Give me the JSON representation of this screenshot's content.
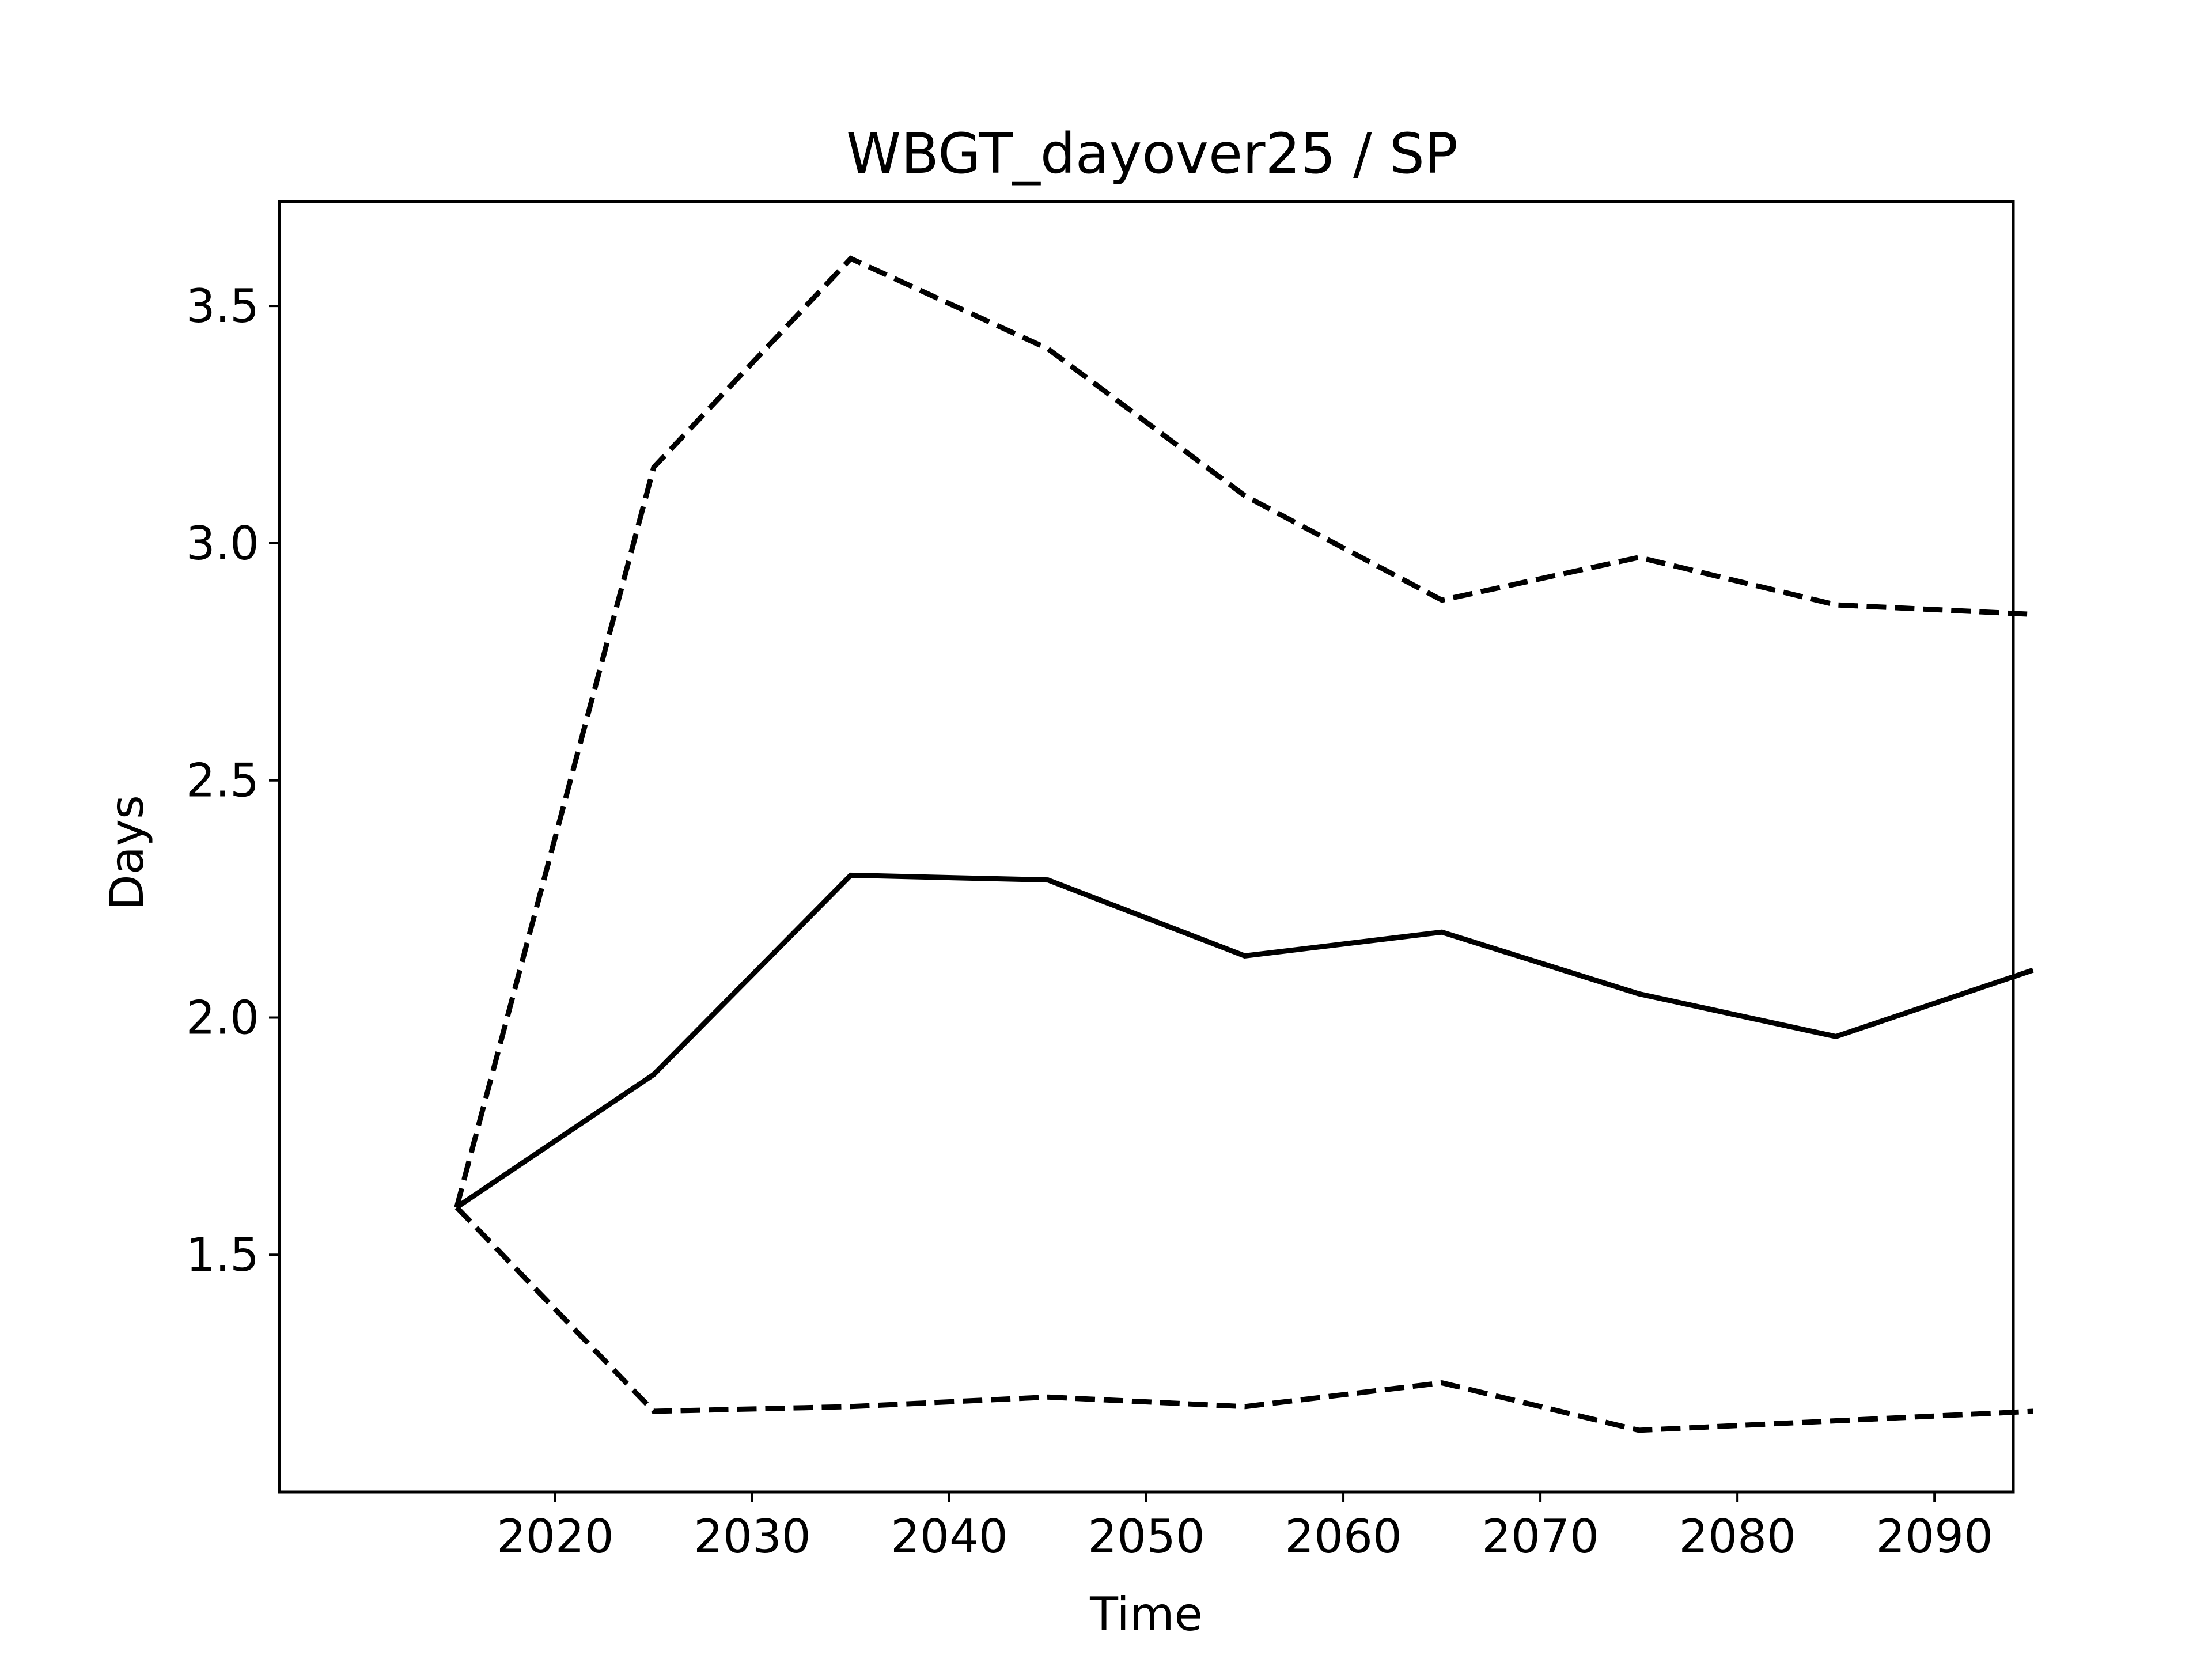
{
  "chart_data": {
    "type": "line",
    "title": "WBGT_dayover25 / SP",
    "xlabel": "Time",
    "ylabel": "Days",
    "x": [
      2015,
      2025,
      2035,
      2045,
      2055,
      2065,
      2075,
      2085,
      2095
    ],
    "xlim": [
      2006,
      2094
    ],
    "ylim": [
      1.0,
      3.72
    ],
    "xticks": [
      2020,
      2030,
      2040,
      2050,
      2060,
      2070,
      2080,
      2090
    ],
    "yticks": [
      1.5,
      2.0,
      2.5,
      3.0,
      3.5
    ],
    "xtick_labels": [
      "2020",
      "2030",
      "2040",
      "2050",
      "2060",
      "2070",
      "2080",
      "2090"
    ],
    "ytick_labels": [
      "1.5",
      "2.0",
      "2.5",
      "3.0",
      "3.5"
    ],
    "grid": false,
    "series": [
      {
        "style": "dashed",
        "color": "#000000",
        "values": [
          1.6,
          3.16,
          3.6,
          3.41,
          3.1,
          2.88,
          2.97,
          2.87,
          2.85
        ]
      },
      {
        "style": "solid",
        "color": "#000000",
        "values": [
          1.6,
          1.88,
          2.3,
          2.29,
          2.13,
          2.18,
          2.05,
          1.96,
          2.1
        ]
      },
      {
        "style": "dashed",
        "color": "#000000",
        "values": [
          1.6,
          1.17,
          1.18,
          1.2,
          1.18,
          1.23,
          1.13,
          1.15,
          1.17
        ]
      }
    ]
  }
}
